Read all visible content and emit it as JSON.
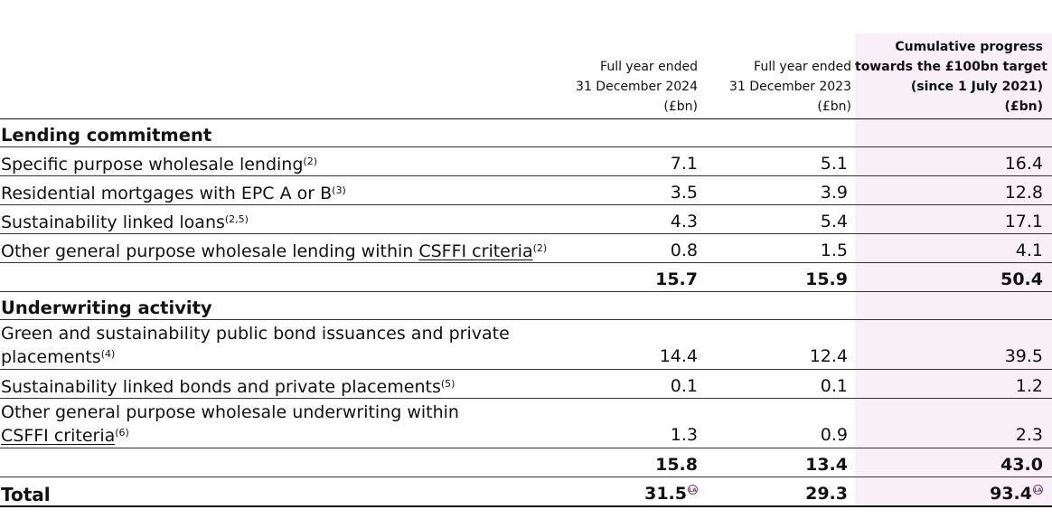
{
  "header": {
    "col_2024": [
      "Full year ended",
      "31 December 2024",
      "(£bn)"
    ],
    "col_2023": [
      "Full year ended",
      "31 December 2023",
      "(£bn)"
    ],
    "col_cumulative": [
      "Cumulative progress",
      "towards the £100bn target",
      "(since 1 July 2021)",
      "(£bn)"
    ]
  },
  "lending": {
    "title": "Lending commitment",
    "rows": [
      {
        "label": "Specific purpose wholesale lending",
        "sup": "(2)",
        "v2024": "7.1",
        "v2023": "5.1",
        "cum": "16.4"
      },
      {
        "label": "Residential mortgages with EPC A or B",
        "sup": "(3)",
        "v2024": "3.5",
        "v2023": "3.9",
        "cum": "12.8"
      },
      {
        "label": "Sustainability linked loans",
        "sup": "(2,5)",
        "v2024": "4.3",
        "v2023": "5.4",
        "cum": "17.1"
      },
      {
        "label_pre": "Other general purpose wholesale lending within ",
        "label_link": "CSFFI criteria",
        "sup": "(2)",
        "v2024": "0.8",
        "v2023": "1.5",
        "cum": "4.1"
      }
    ],
    "subtotal": {
      "v2024": "15.7",
      "v2023": "15.9",
      "cum": "50.4"
    }
  },
  "underwriting": {
    "title": "Underwriting activity",
    "rows": [
      {
        "line1": "Green and sustainability public bond issuances and private",
        "line2": "placements",
        "sup": "(4)",
        "v2024": "14.4",
        "v2023": "12.4",
        "cum": "39.5"
      },
      {
        "label": "Sustainability linked bonds and private placements",
        "sup": "(5)",
        "v2024": "0.1",
        "v2023": "0.1",
        "cum": "1.2"
      },
      {
        "line1": "Other general purpose wholesale underwriting within",
        "line2_link": "CSFFI criteria",
        "sup": "(6)",
        "v2024": "1.3",
        "v2023": "0.9",
        "cum": "2.3"
      }
    ],
    "subtotal": {
      "v2024": "15.8",
      "v2023": "13.4",
      "cum": "43.0"
    }
  },
  "total": {
    "label": "Total",
    "v2024": "31.5",
    "v2023": "29.3",
    "cum": "93.4",
    "badge": "LA"
  },
  "icons": {
    "assurance_badge": "limited-assurance-icon"
  },
  "colors": {
    "cumulative_bg": "#f8eff7",
    "badge": "#7a3b7a"
  }
}
